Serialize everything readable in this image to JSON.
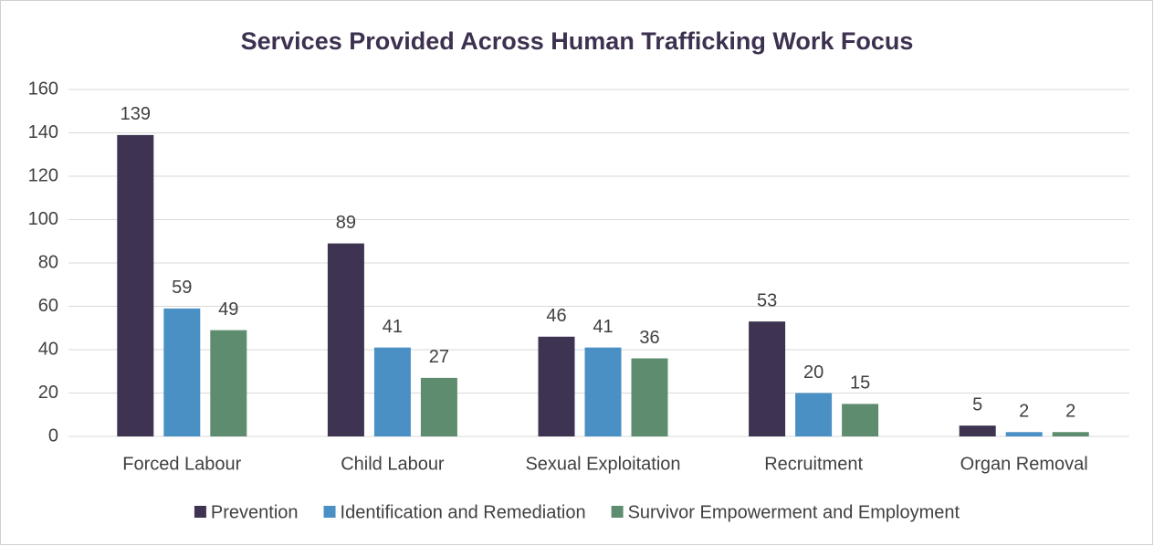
{
  "chart_data": {
    "type": "bar",
    "title": "Services Provided Across Human Trafficking Work Focus",
    "categories": [
      "Forced Labour",
      "Child Labour",
      "Sexual Exploitation",
      "Recruitment",
      "Organ Removal"
    ],
    "series": [
      {
        "name": "Prevention",
        "color": "#3e3350",
        "values": [
          139,
          89,
          46,
          53,
          5
        ]
      },
      {
        "name": "Identification and Remediation",
        "color": "#4a90c4",
        "values": [
          59,
          41,
          41,
          20,
          2
        ]
      },
      {
        "name": "Survivor Empowerment and Employment",
        "color": "#5e8c6e",
        "values": [
          49,
          27,
          36,
          15,
          2
        ]
      }
    ],
    "ylim": [
      0,
      160
    ],
    "yticks": [
      0,
      20,
      40,
      60,
      80,
      100,
      120,
      140,
      160
    ],
    "grid": true,
    "legend": "bottom"
  }
}
